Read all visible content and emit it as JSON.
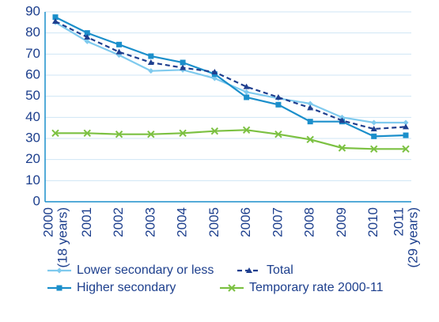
{
  "chart_data": {
    "type": "line",
    "categories": [
      "2000",
      "2001",
      "2002",
      "2003",
      "2004",
      "2005",
      "2006",
      "2007",
      "2008",
      "2009",
      "2010",
      "2011"
    ],
    "category_notes": [
      "(18 years)",
      null,
      null,
      null,
      null,
      null,
      null,
      null,
      null,
      null,
      null,
      "(29 years)"
    ],
    "series": [
      {
        "name": "Lower secondary or less",
        "color": "#7fcaee",
        "marker": "diamond",
        "dash": false,
        "values": [
          85,
          76,
          69.5,
          62,
          62.5,
          58.5,
          52,
          49,
          46.5,
          40,
          37.5,
          37.5
        ]
      },
      {
        "name": "Total",
        "color": "#1f3f8f",
        "marker": "triangle",
        "dash": true,
        "values": [
          85.5,
          78,
          71,
          66,
          63.5,
          61.5,
          54.5,
          49.5,
          44.5,
          38.5,
          34.5,
          35.5
        ]
      },
      {
        "name": "Higher secondary",
        "color": "#1b8fcb",
        "marker": "square",
        "dash": false,
        "values": [
          87.5,
          80,
          74.5,
          69,
          66,
          60.5,
          49.5,
          46,
          38,
          38,
          31,
          31.5
        ]
      },
      {
        "name": "Temporary rate 2000-11",
        "color": "#7cc142",
        "marker": "x",
        "dash": false,
        "values": [
          32.5,
          32.5,
          32,
          32,
          32.5,
          33.5,
          34,
          32,
          29.5,
          25.5,
          25,
          25
        ]
      }
    ],
    "ylim": [
      0,
      90
    ],
    "yticks": [
      0,
      10,
      20,
      30,
      40,
      50,
      60,
      70,
      80,
      90
    ],
    "grid": true
  }
}
